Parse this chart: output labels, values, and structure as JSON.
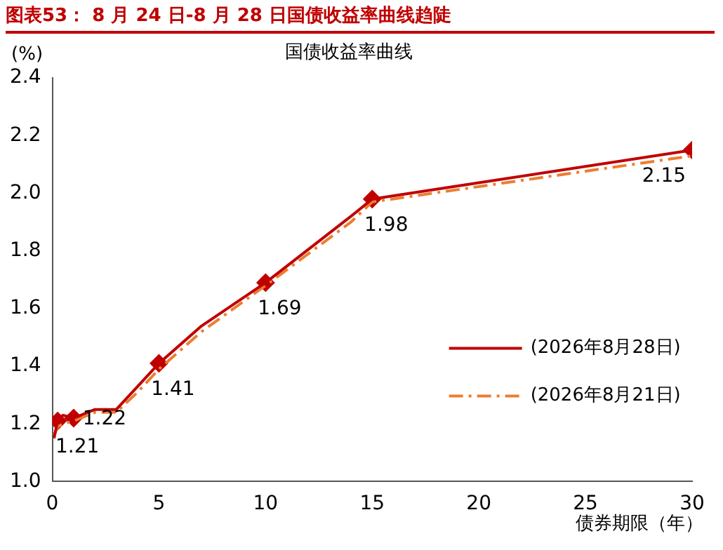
{
  "chart_data": {
    "type": "line",
    "title": "图表53： 8 月 24 日-8 月 28 日国债收益率曲线趋陡",
    "subtitle": "国债收益率曲线",
    "ylabel": "(%)",
    "xlabel": "债券期限（年）",
    "xlim": [
      0,
      30
    ],
    "xticks": [
      0,
      5,
      10,
      15,
      20,
      25,
      30
    ],
    "ylim": [
      1.0,
      2.4
    ],
    "yticks": [
      {
        "value": 1.0,
        "label": "1.0"
      },
      1.2,
      1.4,
      1.6,
      1.8,
      {
        "value": 2.0,
        "label": "2.0"
      },
      2.2,
      2.4
    ],
    "grid": false,
    "legend": "right",
    "marker": "none",
    "series": [
      {
        "name": "(2026年8月28日)",
        "color": "#c00000",
        "line_style": "solid",
        "x": [
          0.08,
          0.25,
          0.5,
          1,
          2,
          3,
          4,
          5,
          7,
          10,
          14,
          15,
          30
        ],
        "values": [
          1.15,
          1.21,
          1.23,
          1.22,
          1.25,
          1.25,
          1.33,
          1.41,
          1.54,
          1.69,
          1.92,
          1.98,
          2.15
        ]
      },
      {
        "name": "(2026年8月21日)",
        "color": "#ed7d31",
        "line_style": "dashdot",
        "x": [
          0.08,
          0.25,
          0.5,
          1,
          2,
          3,
          4,
          5,
          7,
          10,
          14,
          15,
          30
        ],
        "values": [
          1.16,
          1.19,
          1.2,
          1.21,
          1.24,
          1.24,
          1.31,
          1.39,
          1.52,
          1.68,
          1.9,
          1.97,
          2.13
        ]
      },
      {
        "type": "scatter",
        "color": "#c00000",
        "marker": "diamond",
        "data_labels": true,
        "x": [
          0.25,
          1,
          5,
          10,
          15,
          30
        ],
        "values": [
          1.21,
          1.22,
          1.41,
          1.69,
          1.98,
          2.15
        ]
      }
    ]
  }
}
